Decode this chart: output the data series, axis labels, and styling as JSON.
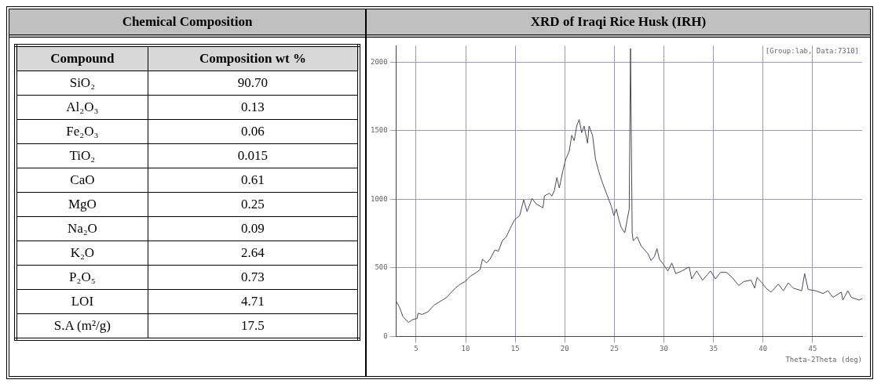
{
  "chart_data": [
    {
      "type": "other",
      "title": "Chemical Composition",
      "xlabel": "Compound",
      "ylabel": "Composition wt %",
      "categories": [
        "SiO₂",
        "Al₂O₃",
        "Fe₂O₃",
        "TiO₂",
        "CaO",
        "MgO",
        "Na₂O",
        "K₂O",
        "P₂O₅",
        "LOI",
        "S.A (m²/g)"
      ],
      "values": [
        90.7,
        0.13,
        0.06,
        0.015,
        0.61,
        0.25,
        0.09,
        2.64,
        0.73,
        4.71,
        17.5
      ],
      "value_labels": [
        "90.70",
        "0.13",
        "0.06",
        "0.015",
        "0.61",
        "0.25",
        "0.09",
        "2.64",
        "0.73",
        "4.71",
        "17.5"
      ]
    },
    {
      "type": "line",
      "title": "XRD of Iraqi Rice Husk (IRH)",
      "xlabel": "Theta-2Theta (deg)",
      "annotations": [
        "[Group:lab, Data:7310]"
      ],
      "xlim": [
        3,
        50
      ],
      "xticks": [
        5,
        10,
        15,
        20,
        25,
        30,
        35,
        40,
        45
      ],
      "ylim": [
        0,
        2120
      ],
      "yticks": [
        0,
        500,
        1000,
        1500,
        2000
      ],
      "grid": true,
      "legend": false,
      "marker": "none",
      "line_style": "solid",
      "series": [
        {
          "color": "#4a4a5a",
          "x": [
            3,
            3.3,
            3.7,
            4.25,
            4.6,
            5.1,
            5.2,
            5.6,
            6.2,
            6.8,
            7.45,
            8.1,
            8.45,
            8.95,
            9.45,
            9.95,
            10.45,
            11.1,
            11.45,
            11.7,
            12.1,
            12.45,
            12.95,
            13.3,
            13.7,
            14.1,
            14.6,
            14.95,
            15.45,
            15.85,
            16.2,
            16.7,
            17.1,
            17.8,
            17.95,
            18.45,
            18.7,
            18.95,
            19.2,
            19.45,
            19.8,
            20.1,
            20.45,
            20.7,
            20.95,
            21.2,
            21.45,
            21.7,
            21.95,
            22.3,
            22.45,
            22.8,
            23.1,
            23.45,
            23.8,
            24.2,
            24.7,
            24.95,
            25.2,
            25.45,
            25.7,
            26.05,
            26.3,
            26.5,
            26.63,
            26.8,
            26.9,
            27.3,
            27.7,
            28.05,
            28.4,
            28.7,
            29.05,
            29.3,
            29.55,
            29.95,
            30.4,
            30.8,
            31.2,
            31.8,
            32.55,
            32.8,
            33.3,
            33.9,
            34.7,
            35.2,
            35.7,
            36.3,
            36.9,
            37.55,
            38.05,
            38.8,
            39.15,
            39.4,
            39.9,
            40.3,
            40.8,
            41.55,
            42.05,
            42.55,
            43.05,
            43.9,
            44.2,
            44.55,
            45.3,
            46.05,
            46.55,
            47.05,
            47.9,
            48.05,
            48.55,
            48.9,
            49.7,
            50
          ],
          "values": [
            256,
            217,
            140,
            102,
            121,
            131,
            169,
            160,
            179,
            227,
            256,
            285,
            313,
            352,
            381,
            400,
            438,
            467,
            487,
            563,
            535,
            563,
            631,
            621,
            698,
            727,
            804,
            852,
            881,
            996,
            910,
            1006,
            967,
            938,
            1025,
            1044,
            1024,
            1063,
            1159,
            1082,
            1207,
            1293,
            1351,
            1467,
            1428,
            1534,
            1582,
            1486,
            1534,
            1409,
            1534,
            1467,
            1293,
            1197,
            1121,
            1044,
            948,
            881,
            929,
            852,
            794,
            756,
            852,
            929,
            2100,
            756,
            698,
            727,
            660,
            631,
            602,
            554,
            583,
            640,
            563,
            525,
            477,
            535,
            458,
            477,
            506,
            419,
            477,
            410,
            477,
            419,
            467,
            467,
            429,
            371,
            400,
            410,
            352,
            429,
            390,
            352,
            323,
            381,
            333,
            390,
            352,
            333,
            458,
            342,
            333,
            313,
            333,
            285,
            323,
            265,
            333,
            285,
            265,
            275
          ]
        }
      ]
    }
  ]
}
